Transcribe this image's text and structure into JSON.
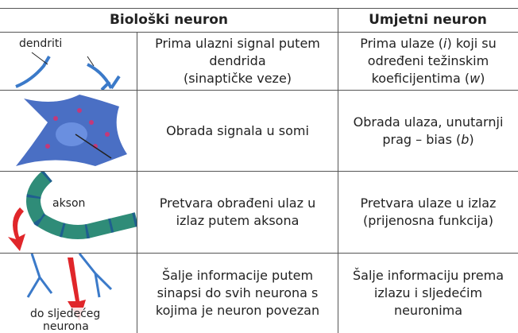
{
  "header": {
    "biological": "Biološki neuron",
    "artificial": "Umjetni neuron"
  },
  "rows": [
    {
      "image_label": [
        "dendriti"
      ],
      "biological": [
        [
          "Prima ulazni signal putem"
        ],
        [
          "dendrida"
        ],
        [
          "(sinaptičke veze)"
        ]
      ],
      "artificial": [
        [
          "Prima ulaze (",
          "i",
          ") koji su"
        ],
        [
          "određeni težinskim"
        ],
        [
          "koeficijentima (",
          "w",
          ")"
        ]
      ]
    },
    {
      "biological": [
        [
          "Obrada signala u somi"
        ]
      ],
      "artificial": [
        [
          "Obrada ulaza, unutarnji"
        ],
        [
          "prag – bias (",
          "b",
          ")"
        ]
      ]
    },
    {
      "image_label": [
        "akson"
      ],
      "biological": [
        [
          "Pretvara obrađeni ulaz u"
        ],
        [
          "izlaz putem aksona"
        ]
      ],
      "artificial": [
        [
          "Pretvara ulaze u izlaz"
        ],
        [
          "(prijenosna funkcija)"
        ]
      ]
    },
    {
      "image_label": [
        "do sljedećeg",
        "neurona"
      ],
      "biological": [
        [
          "Šalje informacije putem"
        ],
        [
          "sinapsi do svih neurona s"
        ],
        [
          "kojima je neuron povezan"
        ]
      ],
      "artificial": [
        [
          "Šalje informaciju prema"
        ],
        [
          "izlazu i sljedećim"
        ],
        [
          "neuronima"
        ]
      ]
    }
  ]
}
